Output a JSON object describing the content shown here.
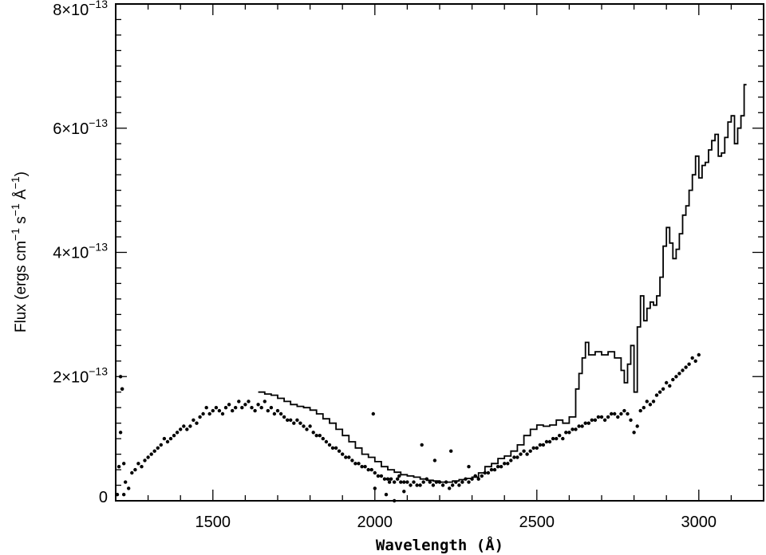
{
  "chart_data": {
    "type": "line",
    "xlabel": "Wavelength (Å)",
    "ylabel": {
      "parts": [
        "Flux (ergs cm",
        "−1",
        " s",
        "−1",
        " Å",
        "−1",
        ")"
      ]
    },
    "xlim": [
      1200,
      3200
    ],
    "ylim": [
      0,
      8e-13
    ],
    "x_ticks": [
      1500,
      2000,
      2500,
      3000
    ],
    "y_ticks": [
      {
        "value": 0,
        "mantissa": "0",
        "exponent": ""
      },
      {
        "value": 2e-13,
        "mantissa": "2×10",
        "exponent": "−13"
      },
      {
        "value": 4e-13,
        "mantissa": "4×10",
        "exponent": "−13"
      },
      {
        "value": 6e-13,
        "mantissa": "6×10",
        "exponent": "−13"
      },
      {
        "value": 8e-13,
        "mantissa": "8×10",
        "exponent": "−13"
      }
    ],
    "y_unit": 1e-13,
    "series": [
      {
        "style": "step-line",
        "x": [
          1640,
          1660,
          1680,
          1700,
          1720,
          1740,
          1760,
          1780,
          1800,
          1820,
          1840,
          1860,
          1880,
          1900,
          1920,
          1940,
          1960,
          1980,
          2000,
          2020,
          2040,
          2060,
          2080,
          2100,
          2120,
          2140,
          2160,
          2180,
          2200,
          2220,
          2240,
          2260,
          2280,
          2300,
          2320,
          2340,
          2360,
          2380,
          2400,
          2420,
          2440,
          2460,
          2480,
          2500,
          2520,
          2540,
          2560,
          2580,
          2600,
          2620,
          2630,
          2640,
          2650,
          2660,
          2680,
          2700,
          2720,
          2740,
          2760,
          2770,
          2780,
          2790,
          2800,
          2810,
          2820,
          2830,
          2840,
          2850,
          2860,
          2870,
          2880,
          2890,
          2900,
          2910,
          2920,
          2930,
          2940,
          2950,
          2960,
          2970,
          2980,
          2990,
          3000,
          3010,
          3020,
          3030,
          3040,
          3050,
          3060,
          3070,
          3080,
          3090,
          3100,
          3110,
          3120,
          3130,
          3140
        ],
        "y": [
          1.75,
          1.72,
          1.7,
          1.65,
          1.6,
          1.55,
          1.52,
          1.5,
          1.46,
          1.4,
          1.32,
          1.25,
          1.15,
          1.05,
          0.95,
          0.85,
          0.75,
          0.7,
          0.63,
          0.55,
          0.5,
          0.46,
          0.42,
          0.4,
          0.38,
          0.35,
          0.33,
          0.32,
          0.3,
          0.3,
          0.32,
          0.34,
          0.36,
          0.38,
          0.45,
          0.55,
          0.6,
          0.68,
          0.72,
          0.8,
          0.9,
          1.05,
          1.15,
          1.22,
          1.2,
          1.22,
          1.3,
          1.25,
          1.35,
          1.8,
          2.05,
          2.3,
          2.55,
          2.35,
          2.4,
          2.35,
          2.4,
          2.3,
          2.1,
          1.9,
          2.2,
          2.5,
          1.75,
          2.8,
          3.3,
          2.9,
          3.1,
          3.2,
          3.15,
          3.3,
          3.6,
          4.1,
          4.4,
          4.15,
          3.9,
          4.05,
          4.3,
          4.6,
          4.75,
          5.0,
          5.25,
          5.55,
          5.2,
          5.4,
          5.45,
          5.65,
          5.8,
          5.9,
          5.55,
          5.6,
          5.85,
          6.1,
          6.2,
          5.75,
          6.0,
          6.2,
          6.7
        ]
      },
      {
        "style": "points",
        "x": [
          1205,
          1210,
          1215,
          1220,
          1225,
          1230,
          1240,
          1250,
          1260,
          1270,
          1280,
          1290,
          1300,
          1310,
          1320,
          1330,
          1340,
          1350,
          1360,
          1370,
          1380,
          1390,
          1400,
          1410,
          1420,
          1430,
          1440,
          1450,
          1460,
          1470,
          1480,
          1490,
          1500,
          1510,
          1520,
          1530,
          1540,
          1550,
          1560,
          1570,
          1580,
          1590,
          1600,
          1610,
          1620,
          1630,
          1640,
          1650,
          1660,
          1670,
          1680,
          1690,
          1700,
          1710,
          1720,
          1730,
          1740,
          1750,
          1760,
          1770,
          1780,
          1790,
          1800,
          1810,
          1820,
          1830,
          1840,
          1850,
          1860,
          1870,
          1880,
          1890,
          1900,
          1910,
          1920,
          1930,
          1940,
          1950,
          1960,
          1970,
          1980,
          1990,
          2000,
          2010,
          2020,
          2030,
          2040,
          2050,
          2060,
          2070,
          2080,
          2090,
          2100,
          2110,
          2120,
          2130,
          2140,
          2150,
          2160,
          2170,
          2180,
          2190,
          2200,
          2210,
          2220,
          2230,
          2240,
          2250,
          2260,
          2270,
          2280,
          2290,
          2300,
          2310,
          2320,
          2330,
          2340,
          2350,
          2360,
          2370,
          2380,
          2390,
          2400,
          2410,
          2420,
          2430,
          2440,
          2450,
          2460,
          2470,
          2480,
          2490,
          2500,
          2510,
          2520,
          2530,
          2540,
          2550,
          2560,
          2570,
          2580,
          2590,
          2600,
          2610,
          2620,
          2630,
          2640,
          2650,
          2660,
          2670,
          2680,
          2690,
          2700,
          2710,
          2720,
          2730,
          2740,
          2750,
          2760,
          2770,
          2780,
          2790,
          2800,
          2810,
          2820,
          2830,
          2840,
          2850,
          2860,
          2870,
          2880,
          2890,
          2900,
          2910,
          2920,
          2930,
          2940,
          2950,
          2960,
          2970,
          2980,
          2990,
          3000,
          1220,
          1215,
          1225,
          1995,
          2000,
          2035,
          2045,
          2060,
          2075,
          2090,
          2145,
          2185,
          2235,
          2290,
          2310
        ],
        "y": [
          0.1,
          0.55,
          2.0,
          1.8,
          0.1,
          0.3,
          0.2,
          0.45,
          0.5,
          0.6,
          0.55,
          0.65,
          0.7,
          0.75,
          0.8,
          0.85,
          0.9,
          1.0,
          0.95,
          1.0,
          1.05,
          1.1,
          1.15,
          1.2,
          1.15,
          1.2,
          1.3,
          1.25,
          1.35,
          1.4,
          1.5,
          1.4,
          1.45,
          1.5,
          1.45,
          1.4,
          1.5,
          1.55,
          1.45,
          1.5,
          1.6,
          1.5,
          1.55,
          1.6,
          1.5,
          1.45,
          1.55,
          1.5,
          1.6,
          1.45,
          1.5,
          1.4,
          1.45,
          1.4,
          1.35,
          1.3,
          1.3,
          1.25,
          1.3,
          1.25,
          1.2,
          1.15,
          1.2,
          1.1,
          1.05,
          1.05,
          1.0,
          0.95,
          0.9,
          0.85,
          0.85,
          0.8,
          0.75,
          0.7,
          0.7,
          0.65,
          0.6,
          0.6,
          0.55,
          0.55,
          0.5,
          0.5,
          0.45,
          0.4,
          0.4,
          0.35,
          0.35,
          0.35,
          0.3,
          0.35,
          0.3,
          0.3,
          0.3,
          0.25,
          0.3,
          0.25,
          0.25,
          0.3,
          0.35,
          0.3,
          0.25,
          0.3,
          0.3,
          0.25,
          0.3,
          0.2,
          0.25,
          0.3,
          0.25,
          0.3,
          0.35,
          0.3,
          0.35,
          0.4,
          0.35,
          0.4,
          0.45,
          0.45,
          0.5,
          0.5,
          0.55,
          0.55,
          0.6,
          0.6,
          0.65,
          0.7,
          0.7,
          0.75,
          0.8,
          0.75,
          0.8,
          0.85,
          0.85,
          0.9,
          0.9,
          0.95,
          0.95,
          1.0,
          1.0,
          1.05,
          1.0,
          1.1,
          1.1,
          1.15,
          1.15,
          1.2,
          1.2,
          1.25,
          1.25,
          1.3,
          1.3,
          1.35,
          1.35,
          1.3,
          1.35,
          1.4,
          1.4,
          1.35,
          1.4,
          1.45,
          1.4,
          1.3,
          1.1,
          1.2,
          1.45,
          1.5,
          1.6,
          1.55,
          1.6,
          1.7,
          1.75,
          1.8,
          1.9,
          1.85,
          1.95,
          2.0,
          2.05,
          2.1,
          2.15,
          2.2,
          2.3,
          2.25,
          2.35,
          1.8,
          1.1,
          0.6,
          1.4,
          0.2,
          0.1,
          0.3,
          0.0,
          0.4,
          0.15,
          0.9,
          0.65,
          0.8,
          0.55,
          0.4
        ]
      }
    ],
    "grid": false,
    "legend": false
  }
}
